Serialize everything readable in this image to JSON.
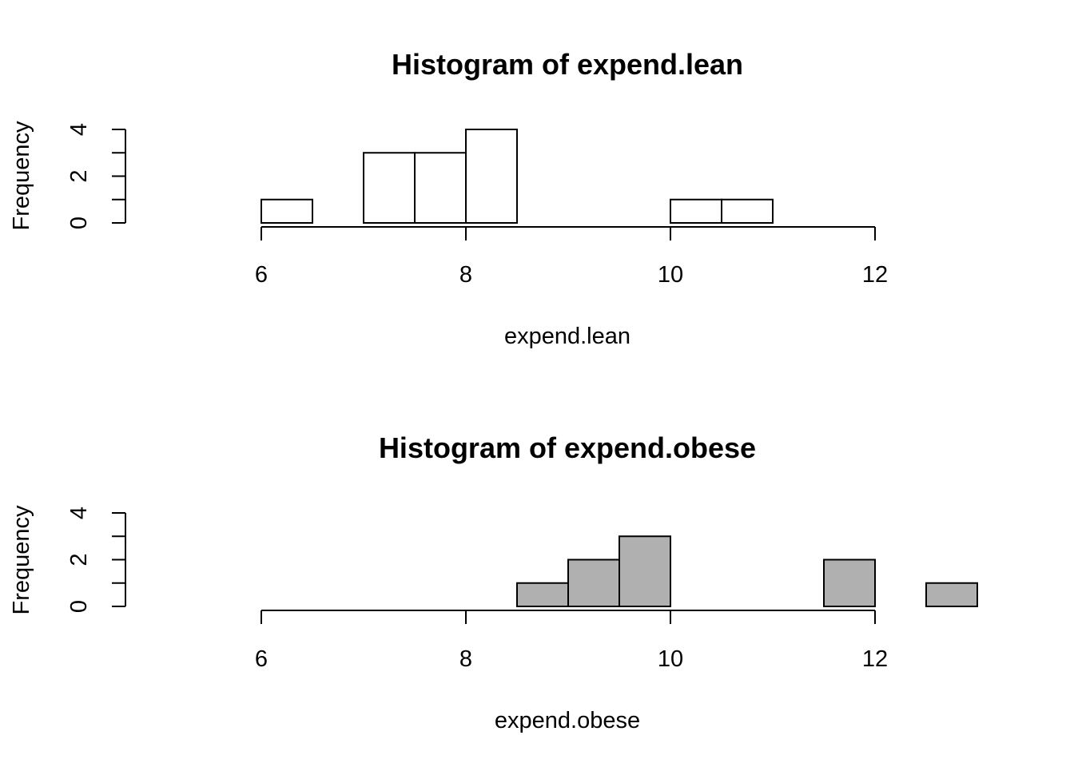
{
  "chart_data": [
    {
      "type": "bar",
      "title": "Histogram of expend.lean",
      "xlabel": "expend.lean",
      "ylabel": "Frequency",
      "xlim": [
        6,
        12
      ],
      "ylim": [
        0,
        4
      ],
      "x_ticks": [
        6,
        8,
        10,
        12
      ],
      "y_ticks": [
        0,
        2,
        4
      ],
      "y_minor_ticks": [
        1,
        3
      ],
      "fill_color": "#ffffff",
      "bins": [
        {
          "from": 6.0,
          "to": 6.5,
          "count": 1
        },
        {
          "from": 6.5,
          "to": 7.0,
          "count": 0
        },
        {
          "from": 7.0,
          "to": 7.5,
          "count": 3
        },
        {
          "from": 7.5,
          "to": 8.0,
          "count": 3
        },
        {
          "from": 8.0,
          "to": 8.5,
          "count": 4
        },
        {
          "from": 8.5,
          "to": 9.0,
          "count": 0
        },
        {
          "from": 9.0,
          "to": 9.5,
          "count": 0
        },
        {
          "from": 9.5,
          "to": 10.0,
          "count": 0
        },
        {
          "from": 10.0,
          "to": 10.5,
          "count": 1
        },
        {
          "from": 10.5,
          "to": 11.0,
          "count": 1
        }
      ]
    },
    {
      "type": "bar",
      "title": "Histogram of expend.obese",
      "xlabel": "expend.obese",
      "ylabel": "Frequency",
      "xlim": [
        6,
        12
      ],
      "ylim": [
        0,
        4
      ],
      "x_ticks": [
        6,
        8,
        10,
        12
      ],
      "y_ticks": [
        0,
        2,
        4
      ],
      "y_minor_ticks": [
        1,
        3
      ],
      "fill_color": "#b0b0b0",
      "bins": [
        {
          "from": 8.5,
          "to": 9.0,
          "count": 1
        },
        {
          "from": 9.0,
          "to": 9.5,
          "count": 2
        },
        {
          "from": 9.5,
          "to": 10.0,
          "count": 3
        },
        {
          "from": 10.0,
          "to": 10.5,
          "count": 0
        },
        {
          "from": 10.5,
          "to": 11.0,
          "count": 0
        },
        {
          "from": 11.0,
          "to": 11.5,
          "count": 0
        },
        {
          "from": 11.5,
          "to": 12.0,
          "count": 2
        },
        {
          "from": 12.0,
          "to": 12.5,
          "count": 0
        },
        {
          "from": 12.5,
          "to": 13.0,
          "count": 1
        }
      ]
    }
  ]
}
